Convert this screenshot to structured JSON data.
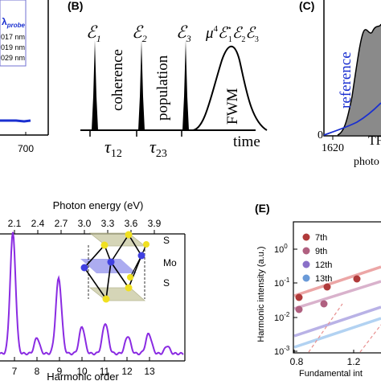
{
  "panelA": {
    "legend_title": "λ",
    "legend_title_sub": "probe",
    "legend_entries": [
      "017 nm",
      "019 nm",
      "029 nm"
    ],
    "x_tick": "700"
  },
  "panelB": {
    "label": "(B)",
    "pulses": [
      {
        "symbol": "ℰ",
        "sub": "1"
      },
      {
        "symbol": "ℰ",
        "sub": "2"
      },
      {
        "symbol": "ℰ",
        "sub": "3"
      }
    ],
    "fwm_formula": {
      "mu": "μ",
      "exp": "4",
      "e1": "ℰ",
      "e1_sup": "⋆",
      "e1_sub": "1",
      "e2": "ℰ",
      "e2_sub": "2",
      "e3": "ℰ",
      "e3_sub": "3"
    },
    "interval_labels": [
      "coherence",
      "population"
    ],
    "fwm_label": "FWM",
    "tau12": {
      "sym": "τ",
      "sub": "12"
    },
    "tau23": {
      "sym": "τ",
      "sub": "23"
    },
    "time_label": "time"
  },
  "panelC": {
    "label": "(C)",
    "reference_label": "reference",
    "x_tick": "1620",
    "xlabel_partial": "photo",
    "y_tick": "0",
    "signal_label_partial": "TF"
  },
  "panelD": {
    "top_axis_label": "Photon energy (eV)",
    "top_ticks": [
      "2.1",
      "2.4",
      "2.7",
      "3.0",
      "3.3",
      "3.6",
      "3.9"
    ],
    "bottom_ticks": [
      "7",
      "8",
      "9",
      "10",
      "11",
      "12",
      "13"
    ],
    "xlabel": "Harmonic order",
    "crystal_labels": [
      "S",
      "Mo",
      "S"
    ],
    "line_color": "#8a2be2"
  },
  "panelE": {
    "label": "(E)",
    "ylabel": "Harmonic intensity (a.u.)",
    "xlabel_partial": "Fundamental int",
    "y_ticks": [
      "10",
      "10",
      "10",
      "10"
    ],
    "y_tick_exps": [
      "0",
      "-1",
      "-2",
      "-3"
    ],
    "x_ticks": [
      "0.8",
      "1.2"
    ],
    "legend": [
      {
        "label": "7th",
        "color": "#b03a3a"
      },
      {
        "label": "9th",
        "color": "#b06080"
      },
      {
        "label": "12th",
        "color": "#8a70c8"
      },
      {
        "label": "13th",
        "color": "#6a9ad8"
      }
    ]
  }
}
